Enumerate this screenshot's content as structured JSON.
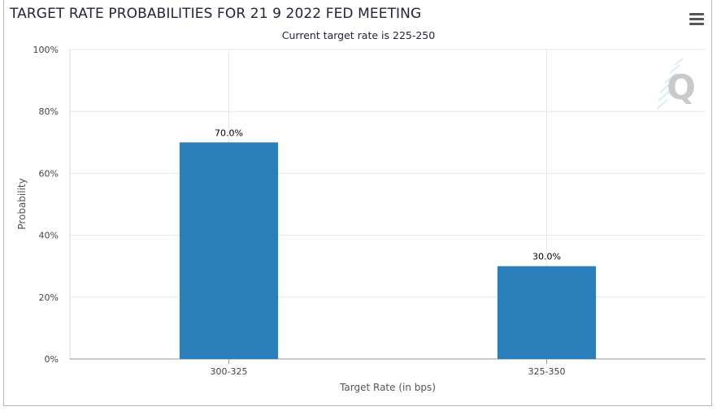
{
  "header": {
    "title": "TARGET RATE PROBABILITIES FOR 21 9 2022 FED MEETING",
    "subtitle": "Current target rate is 225-250"
  },
  "watermark": {
    "letter": "Q"
  },
  "colors": {
    "bar": "#2a7fba",
    "grid": "#e6e6e6",
    "axis": "#999999"
  },
  "chart_data": {
    "type": "bar",
    "title": "TARGET RATE PROBABILITIES FOR 21 9 2022 FED MEETING",
    "subtitle": "Current target rate is 225-250",
    "xlabel": "Target Rate (in bps)",
    "ylabel": "Probability",
    "categories": [
      "300-325",
      "325-350"
    ],
    "values": [
      70.0,
      30.0
    ],
    "data_labels": [
      "70.0%",
      "30.0%"
    ],
    "ylim": [
      0,
      100
    ],
    "yticks": [
      0,
      20,
      40,
      60,
      80,
      100
    ],
    "ytick_labels": [
      "0%",
      "20%",
      "40%",
      "60%",
      "80%",
      "100%"
    ],
    "grid": true,
    "legend": "none"
  }
}
